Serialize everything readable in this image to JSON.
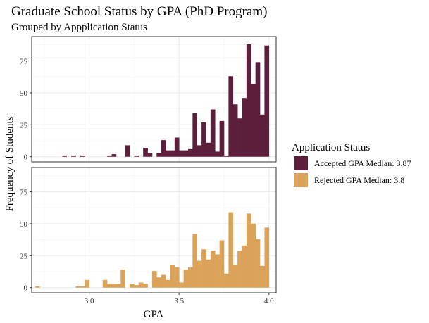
{
  "chart_data": {
    "type": "bar",
    "title": "Graduate School Status by GPA (PhD Program)",
    "subtitle": "Grouped by Appplication Status",
    "xlabel": "GPA",
    "ylabel": "Frequency of Students",
    "xlim": [
      2.68,
      4.04
    ],
    "ylim": [
      -4,
      94
    ],
    "x_ticks": [
      3.0,
      3.5,
      4.0
    ],
    "x_tick_labels": [
      "3.0",
      "3.5",
      "4.0"
    ],
    "y_ticks": [
      0,
      25,
      50,
      75
    ],
    "y_tick_labels": [
      "0",
      "25",
      "50",
      "75"
    ],
    "grid": true,
    "bin_width": 0.025,
    "legend": {
      "title": "Application Status",
      "position": "right"
    },
    "series": [
      {
        "name": "Accepted GPA Median: 3.87",
        "color": "#5c1f3b",
        "bins": [
          [
            2.85,
            1
          ],
          [
            2.9,
            1
          ],
          [
            2.95,
            1
          ],
          [
            3.1,
            1
          ],
          [
            3.125,
            2
          ],
          [
            3.2,
            9
          ],
          [
            3.25,
            1
          ],
          [
            3.3,
            7
          ],
          [
            3.325,
            3
          ],
          [
            3.375,
            3
          ],
          [
            3.4,
            13
          ],
          [
            3.425,
            5
          ],
          [
            3.45,
            5
          ],
          [
            3.475,
            15
          ],
          [
            3.5,
            5
          ],
          [
            3.525,
            5
          ],
          [
            3.55,
            6
          ],
          [
            3.575,
            34
          ],
          [
            3.6,
            9
          ],
          [
            3.625,
            27
          ],
          [
            3.65,
            11
          ],
          [
            3.675,
            37
          ],
          [
            3.7,
            4
          ],
          [
            3.725,
            28
          ],
          [
            3.75,
            1
          ],
          [
            3.775,
            63
          ],
          [
            3.8,
            41
          ],
          [
            3.825,
            30
          ],
          [
            3.85,
            46
          ],
          [
            3.875,
            88
          ],
          [
            3.9,
            57
          ],
          [
            3.925,
            74
          ],
          [
            3.95,
            33
          ],
          [
            3.975,
            87
          ]
        ]
      },
      {
        "name": "Rejected GPA Median: 3.8",
        "color": "#dba35a",
        "bins": [
          [
            2.7,
            1
          ],
          [
            2.925,
            1
          ],
          [
            2.95,
            1
          ],
          [
            2.975,
            6
          ],
          [
            3.075,
            6
          ],
          [
            3.1,
            3
          ],
          [
            3.125,
            3
          ],
          [
            3.15,
            3
          ],
          [
            3.175,
            14
          ],
          [
            3.225,
            3
          ],
          [
            3.25,
            2
          ],
          [
            3.275,
            4
          ],
          [
            3.3,
            3
          ],
          [
            3.35,
            13
          ],
          [
            3.375,
            8
          ],
          [
            3.4,
            10
          ],
          [
            3.425,
            6
          ],
          [
            3.45,
            18
          ],
          [
            3.475,
            16
          ],
          [
            3.5,
            4
          ],
          [
            3.525,
            14
          ],
          [
            3.55,
            16
          ],
          [
            3.575,
            42
          ],
          [
            3.6,
            21
          ],
          [
            3.625,
            30
          ],
          [
            3.65,
            22
          ],
          [
            3.675,
            29
          ],
          [
            3.7,
            26
          ],
          [
            3.725,
            37
          ],
          [
            3.75,
            11
          ],
          [
            3.775,
            59
          ],
          [
            3.8,
            18
          ],
          [
            3.825,
            29
          ],
          [
            3.85,
            33
          ],
          [
            3.875,
            58
          ],
          [
            3.9,
            50
          ],
          [
            3.925,
            38
          ],
          [
            3.95,
            17
          ],
          [
            3.975,
            47
          ]
        ]
      }
    ]
  }
}
